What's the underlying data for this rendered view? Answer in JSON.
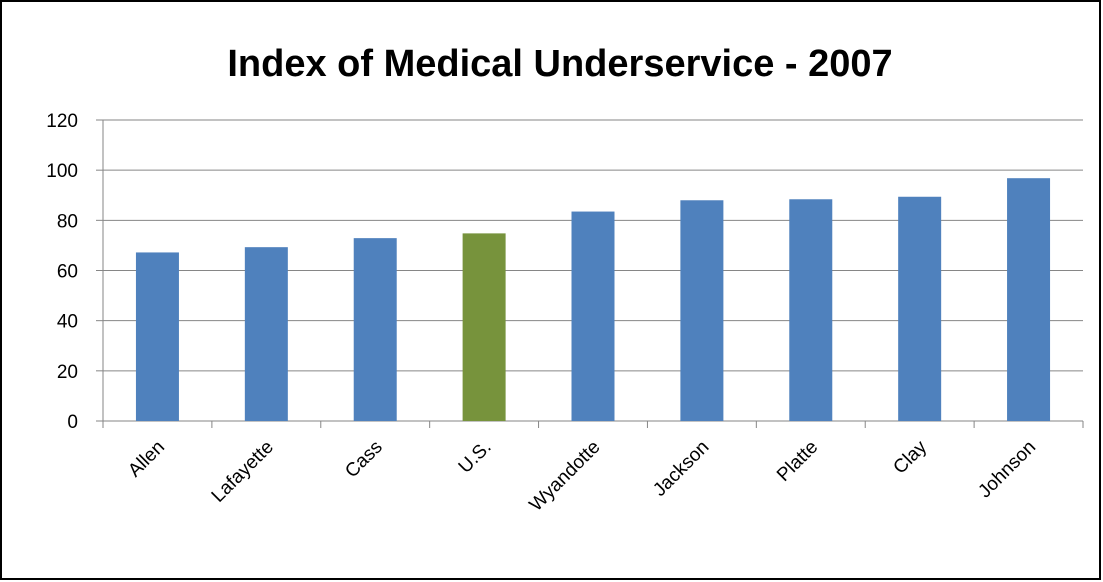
{
  "chart_data": {
    "type": "bar",
    "title": "Index of Medical Underservice - 2007",
    "xlabel": "",
    "ylabel": "",
    "categories": [
      "Allen",
      "Lafayette",
      "Cass",
      "U.S.",
      "Wyandotte",
      "Jackson",
      "Platte",
      "Clay",
      "Johnson"
    ],
    "values": [
      67.2,
      69.3,
      72.9,
      74.8,
      83.5,
      88.0,
      88.4,
      89.4,
      96.8
    ],
    "highlight_category": "U.S.",
    "ylim": [
      0,
      120
    ],
    "yticks": [
      0,
      20,
      40,
      60,
      80,
      100,
      120
    ],
    "grid": true,
    "legend": "none",
    "colors": {
      "bar": "#4F81BD",
      "highlight": "#77933C",
      "grid": "#868686",
      "axis": "#868686"
    }
  }
}
